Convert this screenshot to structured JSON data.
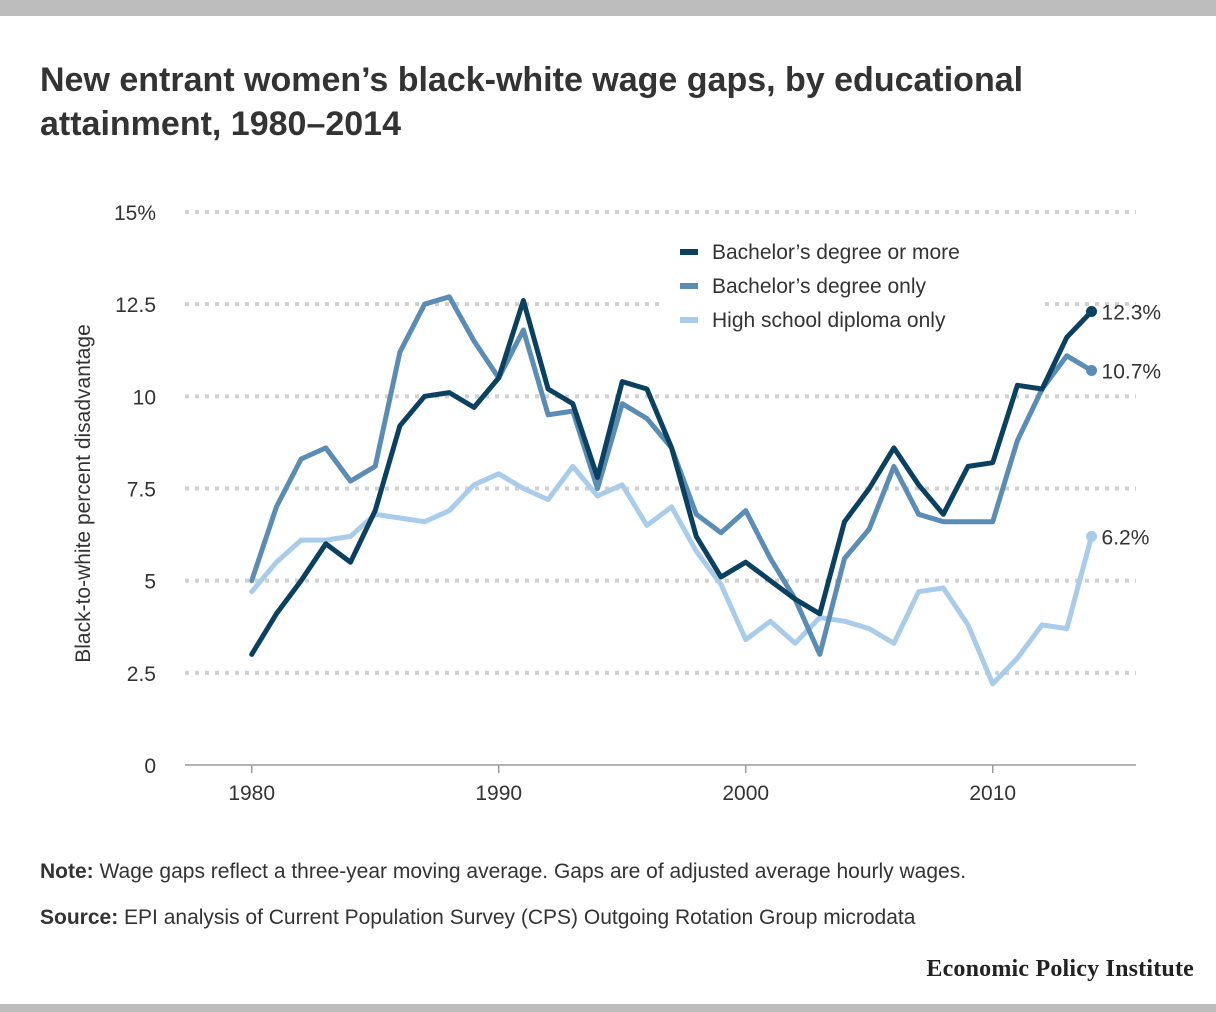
{
  "title": "New entrant women’s black-white wage gaps, by educational attainment, 1980–2014",
  "note": {
    "label": "Note:",
    "text": " Wage gaps reflect a three-year moving average. Gaps are of adjusted average hourly wages."
  },
  "source": {
    "label": "Source:",
    "text": " EPI analysis of Current Population Survey (CPS) Outgoing Rotation Group microdata"
  },
  "brand": "Economic Policy Institute",
  "chart_data": {
    "type": "line",
    "title": "New entrant women’s black-white wage gaps, by educational attainment, 1980–2014",
    "xlabel": "",
    "ylabel": "Black-to-white percent disadvantage",
    "xlim": [
      1977.3,
      2015.8
    ],
    "ylim": [
      0,
      15
    ],
    "x_ticks": [
      1980,
      1990,
      2000,
      2010
    ],
    "y_ticks": [
      {
        "value": 0,
        "label": "0"
      },
      {
        "value": 2.5,
        "label": "2.5"
      },
      {
        "value": 5,
        "label": "5"
      },
      {
        "value": 7.5,
        "label": "7.5"
      },
      {
        "value": 10,
        "label": "10"
      },
      {
        "value": 12.5,
        "label": "12.5"
      },
      {
        "value": 15,
        "label": "15%"
      }
    ],
    "grid": true,
    "legend_position": "top-right",
    "x": [
      1980,
      1981,
      1982,
      1983,
      1984,
      1985,
      1986,
      1987,
      1988,
      1989,
      1990,
      1991,
      1992,
      1993,
      1994,
      1995,
      1996,
      1997,
      1998,
      1999,
      2000,
      2001,
      2002,
      2003,
      2004,
      2005,
      2006,
      2007,
      2008,
      2009,
      2010,
      2011,
      2012,
      2013,
      2014
    ],
    "series": [
      {
        "name": "Bachelor’s degree or more",
        "color": "#0b4160",
        "end_label": "12.3%",
        "values": [
          3.0,
          4.1,
          5.0,
          6.0,
          5.5,
          6.9,
          9.2,
          10.0,
          10.1,
          9.7,
          10.5,
          12.6,
          10.2,
          9.8,
          7.8,
          10.4,
          10.2,
          8.6,
          6.2,
          5.1,
          5.5,
          5.0,
          4.5,
          4.1,
          6.6,
          7.5,
          8.6,
          7.6,
          6.8,
          8.1,
          8.2,
          10.3,
          10.2,
          11.6,
          12.3
        ]
      },
      {
        "name": "Bachelor’s degree only",
        "color": "#5b8db4",
        "end_label": "10.7%",
        "values": [
          5.0,
          7.0,
          8.3,
          8.6,
          7.7,
          8.1,
          11.2,
          12.5,
          12.7,
          11.5,
          10.5,
          11.8,
          9.5,
          9.6,
          7.5,
          9.8,
          9.4,
          8.6,
          6.8,
          6.3,
          6.9,
          5.6,
          4.5,
          3.0,
          5.6,
          6.4,
          8.1,
          6.8,
          6.6,
          6.6,
          6.6,
          8.8,
          10.2,
          11.1,
          10.7
        ]
      },
      {
        "name": "High school diploma only",
        "color": "#a8ccea",
        "end_label": "6.2%",
        "values": [
          4.7,
          5.5,
          6.1,
          6.1,
          6.2,
          6.8,
          6.7,
          6.6,
          6.9,
          7.6,
          7.9,
          7.5,
          7.2,
          8.1,
          7.3,
          7.6,
          6.5,
          7.0,
          5.8,
          4.9,
          3.4,
          3.9,
          3.3,
          4.0,
          3.9,
          3.7,
          3.3,
          4.7,
          4.8,
          3.8,
          2.2,
          2.9,
          3.8,
          3.7,
          6.2
        ]
      }
    ]
  }
}
